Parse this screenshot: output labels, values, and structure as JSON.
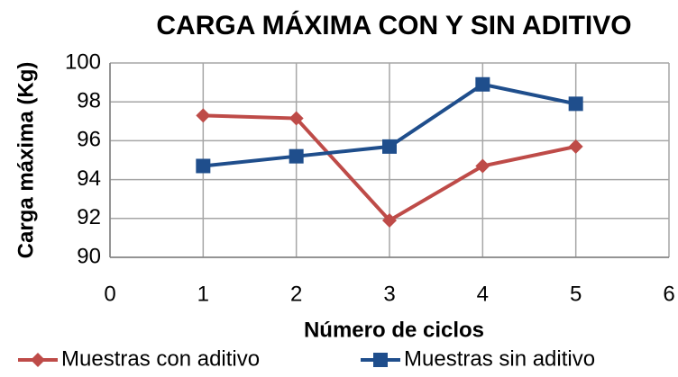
{
  "chart_data": {
    "type": "line",
    "title": "CARGA MÁXIMA CON Y SIN ADITIVO",
    "x_label": "Número de ciclos",
    "y_label": "Carga  máxima (Kg)",
    "x": [
      1,
      2,
      3,
      4,
      5
    ],
    "series": [
      {
        "name": "Muestras con aditivo",
        "color": "#be4b48",
        "marker": "diamond",
        "values": [
          97.3,
          97.15,
          91.9,
          94.7,
          95.7
        ]
      },
      {
        "name": "Muestras sin aditivo",
        "color": "#1f4e8c",
        "marker": "square",
        "values": [
          94.7,
          95.2,
          95.7,
          98.9,
          97.9
        ]
      }
    ],
    "xlim": [
      0,
      6
    ],
    "xticks": [
      0,
      1,
      2,
      3,
      4,
      5,
      6
    ],
    "ylim": [
      90,
      100
    ],
    "yticks": [
      90,
      92,
      94,
      96,
      98,
      100
    ],
    "grid": true,
    "legend": "bottom"
  }
}
